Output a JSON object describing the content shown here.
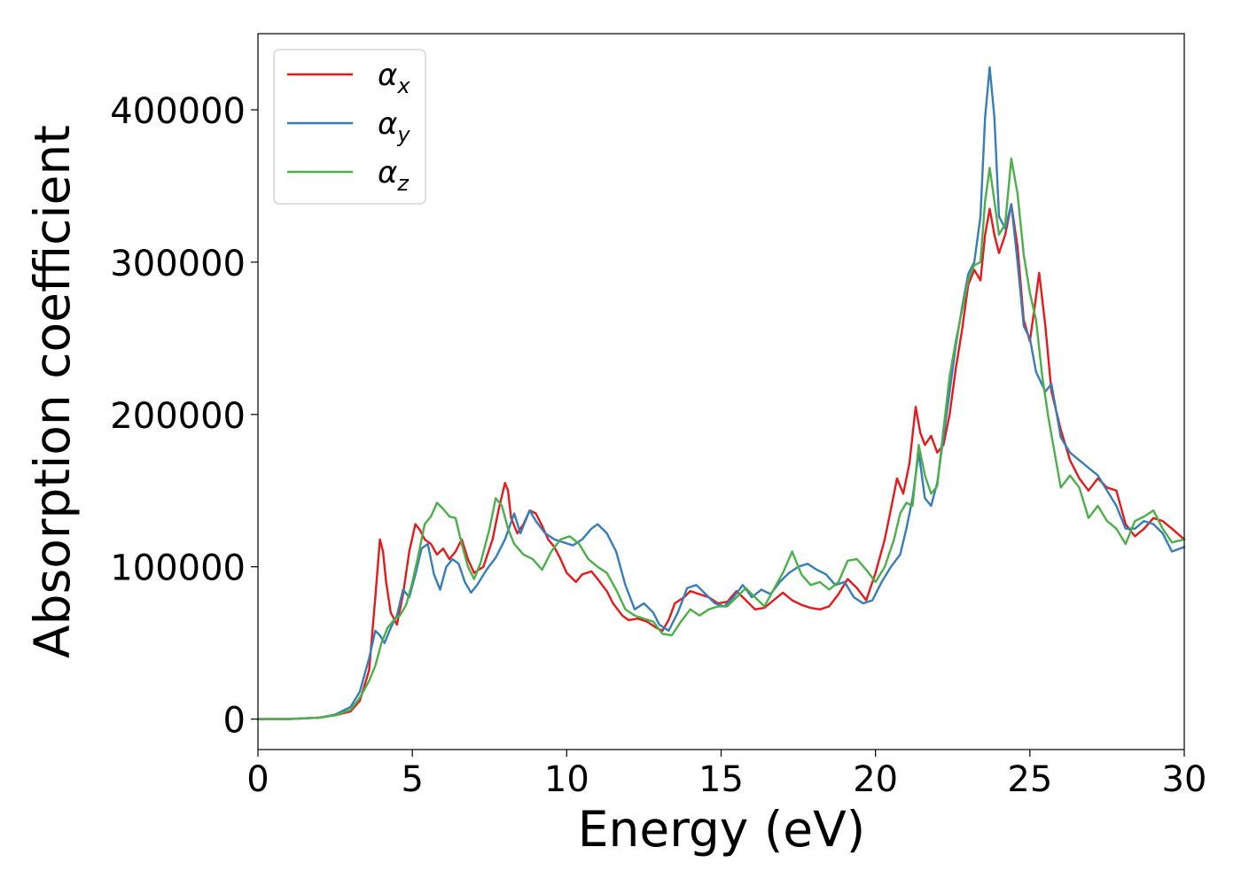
{
  "chart_data": {
    "type": "line",
    "xlabel": "Energy (eV)",
    "ylabel": "Absorption coefficient",
    "xlim": [
      0,
      30
    ],
    "ylim": [
      -20000,
      450000
    ],
    "xticks": [
      "0",
      "5",
      "10",
      "15",
      "20",
      "25",
      "30"
    ],
    "xtick_values": [
      0,
      5,
      10,
      15,
      20,
      25,
      30
    ],
    "yticks": [
      "0",
      "100000",
      "200000",
      "300000",
      "400000"
    ],
    "ytick_values": [
      0,
      100000,
      200000,
      300000,
      400000
    ],
    "grid": false,
    "legend_position": "top-left",
    "series": [
      {
        "name": "α",
        "subscript": "x",
        "color": "#e41a1c",
        "x": [
          0,
          1,
          2,
          2.5,
          3,
          3.3,
          3.6,
          3.8,
          3.95,
          4.05,
          4.15,
          4.3,
          4.5,
          4.7,
          4.9,
          5.1,
          5.25,
          5.4,
          5.6,
          5.8,
          6.0,
          6.2,
          6.4,
          6.6,
          6.8,
          7.0,
          7.3,
          7.6,
          7.8,
          8.0,
          8.1,
          8.2,
          8.4,
          8.6,
          8.8,
          9.0,
          9.2,
          9.4,
          9.6,
          9.8,
          10.0,
          10.3,
          10.5,
          10.8,
          11.0,
          11.3,
          11.5,
          11.8,
          12.0,
          12.3,
          12.6,
          12.9,
          13.1,
          13.3,
          13.5,
          13.8,
          14.0,
          14.3,
          14.6,
          14.9,
          15.2,
          15.5,
          15.8,
          16.1,
          16.4,
          16.7,
          17.0,
          17.3,
          17.6,
          17.9,
          18.2,
          18.5,
          18.8,
          19.1,
          19.4,
          19.7,
          20.0,
          20.3,
          20.5,
          20.7,
          20.9,
          21.1,
          21.3,
          21.45,
          21.6,
          21.8,
          22.0,
          22.2,
          22.4,
          22.6,
          22.8,
          23.0,
          23.2,
          23.4,
          23.55,
          23.7,
          23.85,
          24.0,
          24.2,
          24.4,
          24.6,
          24.8,
          25.0,
          25.15,
          25.3,
          25.5,
          25.7,
          26.0,
          26.3,
          26.6,
          26.9,
          27.2,
          27.5,
          27.8,
          28.1,
          28.4,
          28.7,
          29.0,
          29.3,
          29.6,
          30.0
        ],
        "y": [
          0,
          0,
          1000,
          2500,
          5000,
          12000,
          32000,
          80000,
          118000,
          110000,
          90000,
          70000,
          62000,
          82000,
          110000,
          128000,
          124000,
          118000,
          115000,
          108000,
          112000,
          105000,
          110000,
          118000,
          105000,
          96000,
          100000,
          118000,
          138000,
          155000,
          150000,
          132000,
          122000,
          128000,
          137000,
          135000,
          127000,
          118000,
          113000,
          105000,
          96000,
          90000,
          95000,
          97000,
          92000,
          84000,
          76000,
          68000,
          65000,
          66000,
          64000,
          60000,
          58000,
          65000,
          76000,
          80000,
          84000,
          82000,
          80000,
          76000,
          77000,
          84000,
          78000,
          72000,
          73000,
          78000,
          83000,
          78000,
          75000,
          73000,
          72000,
          74000,
          82000,
          92000,
          86000,
          78000,
          96000,
          118000,
          138000,
          158000,
          148000,
          168000,
          205000,
          188000,
          180000,
          186000,
          175000,
          180000,
          200000,
          230000,
          255000,
          285000,
          295000,
          288000,
          318000,
          335000,
          318000,
          306000,
          318000,
          338000,
          310000,
          262000,
          248000,
          270000,
          293000,
          258000,
          215000,
          190000,
          170000,
          158000,
          150000,
          158000,
          152000,
          150000,
          128000,
          120000,
          125000,
          132000,
          130000,
          125000,
          118000
        ]
      },
      {
        "name": "α",
        "subscript": "y",
        "color": "#377eb8",
        "x": [
          0,
          1,
          2,
          2.5,
          3,
          3.3,
          3.6,
          3.8,
          3.95,
          4.1,
          4.3,
          4.5,
          4.7,
          4.9,
          5.1,
          5.3,
          5.5,
          5.7,
          5.9,
          6.1,
          6.3,
          6.5,
          6.7,
          6.9,
          7.1,
          7.4,
          7.7,
          8.0,
          8.3,
          8.5,
          8.8,
          9.0,
          9.3,
          9.6,
          9.9,
          10.2,
          10.5,
          10.8,
          11.0,
          11.3,
          11.6,
          11.9,
          12.2,
          12.5,
          12.8,
          13.0,
          13.3,
          13.6,
          13.9,
          14.2,
          14.5,
          14.8,
          15.1,
          15.4,
          15.7,
          16.0,
          16.3,
          16.6,
          16.9,
          17.2,
          17.5,
          17.8,
          18.1,
          18.4,
          18.7,
          19.0,
          19.3,
          19.6,
          19.9,
          20.2,
          20.5,
          20.8,
          21.0,
          21.2,
          21.4,
          21.6,
          21.8,
          22.0,
          22.2,
          22.4,
          22.6,
          22.8,
          23.0,
          23.2,
          23.4,
          23.55,
          23.7,
          23.85,
          24.0,
          24.2,
          24.4,
          24.6,
          24.8,
          25.0,
          25.2,
          25.5,
          25.7,
          26.0,
          26.3,
          26.6,
          26.9,
          27.2,
          27.5,
          27.8,
          28.1,
          28.4,
          28.7,
          29.0,
          29.3,
          29.6,
          30.0
        ],
        "y": [
          0,
          0,
          1000,
          3000,
          8000,
          18000,
          40000,
          58000,
          55000,
          50000,
          60000,
          68000,
          85000,
          80000,
          95000,
          112000,
          115000,
          95000,
          85000,
          100000,
          105000,
          102000,
          90000,
          83000,
          88000,
          98000,
          106000,
          118000,
          135000,
          122000,
          137000,
          130000,
          122000,
          118000,
          116000,
          114000,
          118000,
          125000,
          128000,
          122000,
          110000,
          88000,
          72000,
          76000,
          70000,
          62000,
          58000,
          70000,
          86000,
          88000,
          82000,
          76000,
          74000,
          80000,
          88000,
          80000,
          85000,
          82000,
          90000,
          96000,
          100000,
          102000,
          98000,
          95000,
          88000,
          90000,
          80000,
          76000,
          78000,
          90000,
          100000,
          108000,
          125000,
          145000,
          175000,
          145000,
          140000,
          155000,
          185000,
          215000,
          245000,
          270000,
          292000,
          300000,
          330000,
          395000,
          428000,
          395000,
          330000,
          322000,
          338000,
          300000,
          258000,
          250000,
          228000,
          215000,
          220000,
          185000,
          175000,
          170000,
          165000,
          160000,
          150000,
          140000,
          125000,
          125000,
          130000,
          128000,
          122000,
          110000,
          113000
        ]
      },
      {
        "name": "α",
        "subscript": "z",
        "color": "#4daf4a",
        "x": [
          0,
          1,
          2,
          2.5,
          3,
          3.3,
          3.6,
          3.8,
          4.0,
          4.2,
          4.4,
          4.6,
          4.8,
          5.0,
          5.2,
          5.4,
          5.6,
          5.8,
          6.0,
          6.2,
          6.4,
          6.6,
          6.8,
          7.0,
          7.2,
          7.5,
          7.7,
          7.9,
          8.1,
          8.3,
          8.6,
          8.9,
          9.2,
          9.5,
          9.8,
          10.1,
          10.4,
          10.7,
          11.0,
          11.3,
          11.6,
          11.9,
          12.2,
          12.5,
          12.8,
          13.1,
          13.4,
          13.7,
          14.0,
          14.3,
          14.6,
          14.9,
          15.2,
          15.5,
          15.8,
          16.1,
          16.4,
          16.7,
          17.0,
          17.3,
          17.6,
          17.9,
          18.2,
          18.5,
          18.8,
          19.1,
          19.4,
          19.7,
          20.0,
          20.3,
          20.6,
          20.8,
          21.0,
          21.2,
          21.4,
          21.6,
          21.8,
          22.0,
          22.2,
          22.4,
          22.6,
          22.8,
          23.0,
          23.2,
          23.4,
          23.55,
          23.7,
          23.85,
          24.0,
          24.2,
          24.4,
          24.6,
          24.8,
          25.0,
          25.2,
          25.4,
          25.6,
          25.8,
          26.0,
          26.3,
          26.6,
          26.9,
          27.2,
          27.5,
          27.8,
          28.1,
          28.4,
          28.7,
          29.0,
          29.3,
          29.6,
          30.0
        ],
        "y": [
          0,
          0,
          1000,
          2500,
          6000,
          14000,
          25000,
          35000,
          50000,
          60000,
          65000,
          68000,
          75000,
          90000,
          108000,
          128000,
          133000,
          142000,
          138000,
          133000,
          132000,
          115000,
          100000,
          92000,
          102000,
          125000,
          145000,
          140000,
          125000,
          115000,
          108000,
          105000,
          98000,
          110000,
          118000,
          120000,
          115000,
          105000,
          100000,
          96000,
          85000,
          72000,
          68000,
          66000,
          64000,
          56000,
          55000,
          64000,
          72000,
          68000,
          72000,
          74000,
          74000,
          80000,
          86000,
          80000,
          74000,
          85000,
          96000,
          110000,
          95000,
          88000,
          90000,
          85000,
          90000,
          104000,
          105000,
          98000,
          90000,
          100000,
          118000,
          135000,
          142000,
          140000,
          180000,
          160000,
          148000,
          153000,
          190000,
          225000,
          248000,
          268000,
          288000,
          298000,
          300000,
          340000,
          362000,
          340000,
          318000,
          325000,
          368000,
          345000,
          305000,
          280000,
          262000,
          225000,
          198000,
          175000,
          152000,
          160000,
          152000,
          132000,
          140000,
          130000,
          125000,
          115000,
          130000,
          133000,
          137000,
          125000,
          116000,
          118000
        ]
      }
    ]
  }
}
